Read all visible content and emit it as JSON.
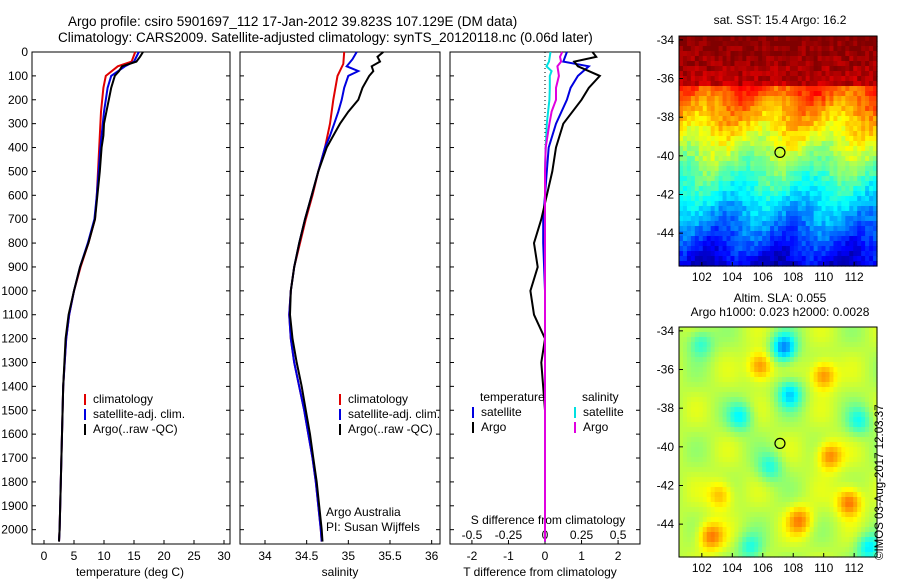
{
  "title_line1": "Argo profile: csiro 5901697_112 17-Jan-2012 39.823S 107.129E (DM data)",
  "title_line2": "Climatology: CARS2009. Satellite-adjusted climatology: synTS_20120118.nc (0.06d later)",
  "watermark": "©IMOS 03-Aug-2017 12:03:37",
  "colors": {
    "climatology": "#e00000",
    "satellite": "#0000e0",
    "argo": "#000000",
    "sal_satellite": "#00e0e0",
    "sal_argo": "#e000e0"
  },
  "chart_data": [
    {
      "type": "line",
      "name": "temperature",
      "xlabel": "temperature (deg C)",
      "ylabel": "",
      "xlim": [
        -2,
        31
      ],
      "ylim": [
        2060,
        0
      ],
      "x_ticks": [
        0,
        5,
        10,
        15,
        20,
        25,
        30
      ],
      "y_ticks": [
        0,
        100,
        200,
        300,
        400,
        500,
        600,
        700,
        800,
        900,
        1000,
        1100,
        1200,
        1300,
        1400,
        1500,
        1600,
        1700,
        1800,
        1900,
        2000
      ],
      "legend": [
        "climatology",
        "satellite-adj. clim.",
        "Argo(..raw -QC)"
      ],
      "legend_position": "lower-center",
      "series": [
        {
          "name": "climatology",
          "color": "#e00000",
          "depth": [
            0,
            40,
            60,
            100,
            150,
            200,
            250,
            300,
            400,
            500,
            600,
            700,
            800,
            900,
            1000,
            1100,
            1200,
            1400,
            1600,
            1800,
            2000,
            2050
          ],
          "values": [
            15.2,
            14.6,
            12.3,
            10.3,
            9.9,
            9.7,
            9.5,
            9.4,
            9.2,
            9.0,
            8.8,
            8.5,
            7.4,
            6.1,
            5.0,
            4.2,
            3.7,
            3.2,
            3.0,
            2.8,
            2.6,
            2.5
          ]
        },
        {
          "name": "satellite-adj. clim.",
          "color": "#0000e0",
          "depth": [
            0,
            40,
            60,
            100,
            150,
            200,
            250,
            300,
            400,
            500,
            600,
            700,
            800,
            900,
            1000,
            1100,
            1200,
            1400,
            1600,
            1800,
            2000,
            2050
          ],
          "values": [
            15.8,
            15.0,
            13.5,
            11.2,
            10.6,
            10.3,
            10.0,
            9.8,
            9.4,
            9.1,
            8.8,
            8.4,
            7.3,
            6.0,
            5.0,
            4.2,
            3.7,
            3.2,
            3.0,
            2.8,
            2.6,
            2.5
          ]
        },
        {
          "name": "Argo(..raw -QC)",
          "color": "#000000",
          "depth": [
            0,
            20,
            40,
            60,
            80,
            100,
            150,
            200,
            250,
            300,
            350,
            400,
            500,
            600,
            700,
            800,
            900,
            1000,
            1100,
            1200,
            1400,
            1600,
            1800,
            2000,
            2050
          ],
          "values": [
            16.5,
            16.0,
            15.4,
            13.0,
            12.5,
            11.8,
            11.2,
            10.8,
            10.4,
            10.0,
            9.9,
            9.6,
            9.3,
            8.9,
            8.5,
            7.4,
            6.0,
            5.0,
            4.1,
            3.6,
            3.2,
            3.0,
            2.8,
            2.6,
            2.5
          ]
        }
      ]
    },
    {
      "type": "line",
      "name": "salinity",
      "xlabel": "salinity",
      "ylabel": "",
      "xlim": [
        33.7,
        36.1
      ],
      "ylim": [
        2060,
        0
      ],
      "x_ticks": [
        34,
        34.5,
        35,
        35.5,
        36
      ],
      "legend": [
        "climatology",
        "satellite-adj. clim.",
        "Argo(..raw -QC)"
      ],
      "legend_position": "lower-center",
      "annotation": [
        "Argo Australia",
        "PI: Susan Wijffels"
      ],
      "series": [
        {
          "name": "climatology",
          "color": "#e00000",
          "depth": [
            0,
            50,
            100,
            200,
            300,
            400,
            500,
            600,
            700,
            800,
            900,
            1000,
            1100,
            1200,
            1300,
            1400,
            1500,
            1600,
            1700,
            1800,
            1900,
            2000,
            2050
          ],
          "values": [
            34.95,
            34.94,
            34.87,
            34.82,
            34.78,
            34.72,
            34.64,
            34.57,
            34.49,
            34.42,
            34.35,
            34.31,
            34.29,
            34.31,
            34.35,
            34.41,
            34.47,
            34.52,
            34.57,
            34.61,
            34.64,
            34.67,
            34.68
          ]
        },
        {
          "name": "satellite-adj. clim.",
          "color": "#0000e0",
          "depth": [
            0,
            30,
            60,
            80,
            100,
            150,
            200,
            250,
            300,
            350,
            400,
            500,
            600,
            700,
            800,
            900,
            1000,
            1100,
            1200,
            1300,
            1400,
            1500,
            1600,
            1700,
            1800,
            1900,
            2000,
            2050
          ],
          "values": [
            35.1,
            35.05,
            34.98,
            35.12,
            35.0,
            34.95,
            34.92,
            34.88,
            34.83,
            34.78,
            34.72,
            34.64,
            34.56,
            34.48,
            34.41,
            34.35,
            34.31,
            34.29,
            34.31,
            34.35,
            34.41,
            34.47,
            34.52,
            34.57,
            34.61,
            34.64,
            34.67,
            34.68
          ]
        },
        {
          "name": "Argo(..raw -QC)",
          "color": "#000000",
          "depth": [
            0,
            20,
            40,
            60,
            80,
            100,
            150,
            200,
            250,
            300,
            350,
            400,
            500,
            600,
            700,
            800,
            900,
            1000,
            1100,
            1200,
            1300,
            1400,
            1500,
            1600,
            1700,
            1800,
            1900,
            2000,
            2050
          ],
          "values": [
            35.42,
            35.35,
            35.38,
            35.28,
            35.3,
            35.25,
            35.17,
            35.12,
            35.0,
            34.9,
            34.82,
            34.74,
            34.64,
            34.56,
            34.48,
            34.41,
            34.35,
            34.31,
            34.3,
            34.33,
            34.38,
            34.44,
            34.49,
            34.54,
            34.58,
            34.62,
            34.65,
            34.68,
            34.69
          ]
        }
      ]
    },
    {
      "type": "line",
      "name": "differences",
      "xlabel": "T difference from climatology",
      "xlabel_top": "S difference from climatology",
      "xlim": [
        -2.6,
        2.6
      ],
      "ylim": [
        2060,
        0
      ],
      "x_ticks_T": [
        -2,
        -1,
        0,
        1,
        2
      ],
      "x_ticks_S": [
        "-0.5",
        "-0.25",
        "0",
        "0.25",
        "0.5"
      ],
      "legend_temperature": {
        "header": "temperature",
        "entries": [
          "satellite",
          "Argo"
        ]
      },
      "legend_salinity": {
        "header": "salinity",
        "entries": [
          "satellite",
          "Argo"
        ]
      },
      "series": [
        {
          "name": "satellite",
          "group": "temperature",
          "color": "#0000e0",
          "depth": [
            0,
            40,
            60,
            100,
            150,
            200,
            300,
            400,
            500,
            600,
            700,
            800,
            1000,
            1200,
            1500,
            2050
          ],
          "values": [
            0.6,
            0.5,
            1.2,
            0.9,
            0.7,
            0.6,
            0.3,
            0.1,
            0.05,
            0.0,
            -0.05,
            -0.05,
            0.0,
            0.0,
            0.0,
            0.0
          ]
        },
        {
          "name": "Argo",
          "group": "temperature",
          "color": "#000000",
          "depth": [
            0,
            20,
            40,
            60,
            100,
            150,
            200,
            300,
            400,
            500,
            600,
            700,
            800,
            900,
            1000,
            1100,
            1200,
            1300,
            1500,
            2050
          ],
          "values": [
            1.3,
            1.4,
            0.8,
            0.9,
            1.5,
            1.2,
            1.0,
            0.5,
            0.3,
            0.2,
            0.05,
            -0.1,
            -0.3,
            -0.2,
            -0.4,
            -0.3,
            0.0,
            -0.1,
            0.0,
            0.0
          ]
        },
        {
          "name": "satellite",
          "group": "salinity",
          "color": "#00e0e0",
          "depth": [
            0,
            40,
            60,
            80,
            100,
            150,
            200,
            300,
            400,
            500,
            700,
            1000,
            1500,
            2050
          ],
          "values": [
            0.15,
            0.11,
            0.04,
            0.18,
            0.13,
            0.13,
            0.12,
            0.05,
            0.02,
            0.0,
            0.0,
            0.0,
            0.0,
            0.0
          ]
        },
        {
          "name": "Argo",
          "group": "salinity",
          "color": "#e000e0",
          "depth": [
            0,
            20,
            40,
            60,
            80,
            100,
            150,
            200,
            250,
            300,
            400,
            500,
            600,
            700,
            800,
            1000,
            1500,
            2050
          ],
          "values": [
            0.47,
            0.41,
            0.44,
            0.34,
            0.36,
            0.38,
            0.3,
            0.3,
            0.18,
            0.12,
            0.02,
            0.0,
            0.0,
            0.0,
            0.0,
            0.0,
            0.0,
            0.0
          ]
        }
      ]
    },
    {
      "type": "heatmap",
      "name": "sst-map",
      "title": "sat. SST: 15.4  Argo: 16.2",
      "x_ticks": [
        "102",
        "104",
        "106",
        "108",
        "110",
        "112"
      ],
      "y_ticks": [
        "-34",
        "-36",
        "-38",
        "-40",
        "-42",
        "-44"
      ],
      "xlim": [
        100.5,
        113.5
      ],
      "ylim": [
        -45.7,
        -33.8
      ],
      "marker": {
        "lon": 107.129,
        "lat": -39.823
      }
    },
    {
      "type": "heatmap",
      "name": "sla-map",
      "title_line1": "Altim. SLA: 0.055",
      "title_line2": "Argo h1000: 0.023 h2000: 0.0028",
      "x_ticks": [
        "102",
        "104",
        "106",
        "108",
        "110",
        "112"
      ],
      "y_ticks": [
        "-34",
        "-36",
        "-38",
        "-40",
        "-42",
        "-44"
      ],
      "xlim": [
        100.5,
        113.5
      ],
      "ylim": [
        -45.7,
        -33.8
      ],
      "marker": {
        "lon": 107.129,
        "lat": -39.823
      }
    }
  ]
}
